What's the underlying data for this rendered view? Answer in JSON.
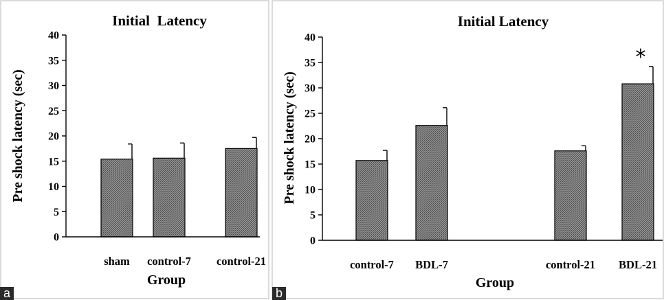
{
  "chart_data": [
    {
      "panel_label": "a",
      "type": "bar",
      "title": "Initial  Latency",
      "xlabel": "Group",
      "ylabel": "Pre shock latency (sec)",
      "ylim": [
        0,
        40
      ],
      "yticks": [
        0,
        5,
        10,
        15,
        20,
        25,
        30,
        35,
        40
      ],
      "categories": [
        "sham",
        "control-7",
        "control-21"
      ],
      "values": [
        15.4,
        15.6,
        17.5
      ],
      "errors": [
        3.0,
        3.0,
        2.2
      ],
      "annotations": [
        "",
        "",
        ""
      ],
      "colors": {
        "bar_fill": "#8c8c8c",
        "bar_stroke": "#000000"
      },
      "grid": false
    },
    {
      "panel_label": "b",
      "type": "bar",
      "title": "Initial Latency",
      "xlabel": "Group",
      "ylabel": "Pre shock latency (sec)",
      "ylim": [
        0,
        40
      ],
      "yticks": [
        0,
        5,
        10,
        15,
        20,
        25,
        30,
        35,
        40
      ],
      "categories": [
        "control-7",
        "BDL-7",
        "",
        "control-21",
        "BDL-21"
      ],
      "values": [
        15.7,
        22.6,
        null,
        17.6,
        30.8
      ],
      "errors": [
        2.0,
        3.5,
        null,
        1.0,
        3.4
      ],
      "annotations": [
        "",
        "",
        "",
        "",
        "*"
      ],
      "colors": {
        "bar_fill": "#8c8c8c",
        "bar_stroke": "#000000"
      },
      "grid": false
    }
  ]
}
